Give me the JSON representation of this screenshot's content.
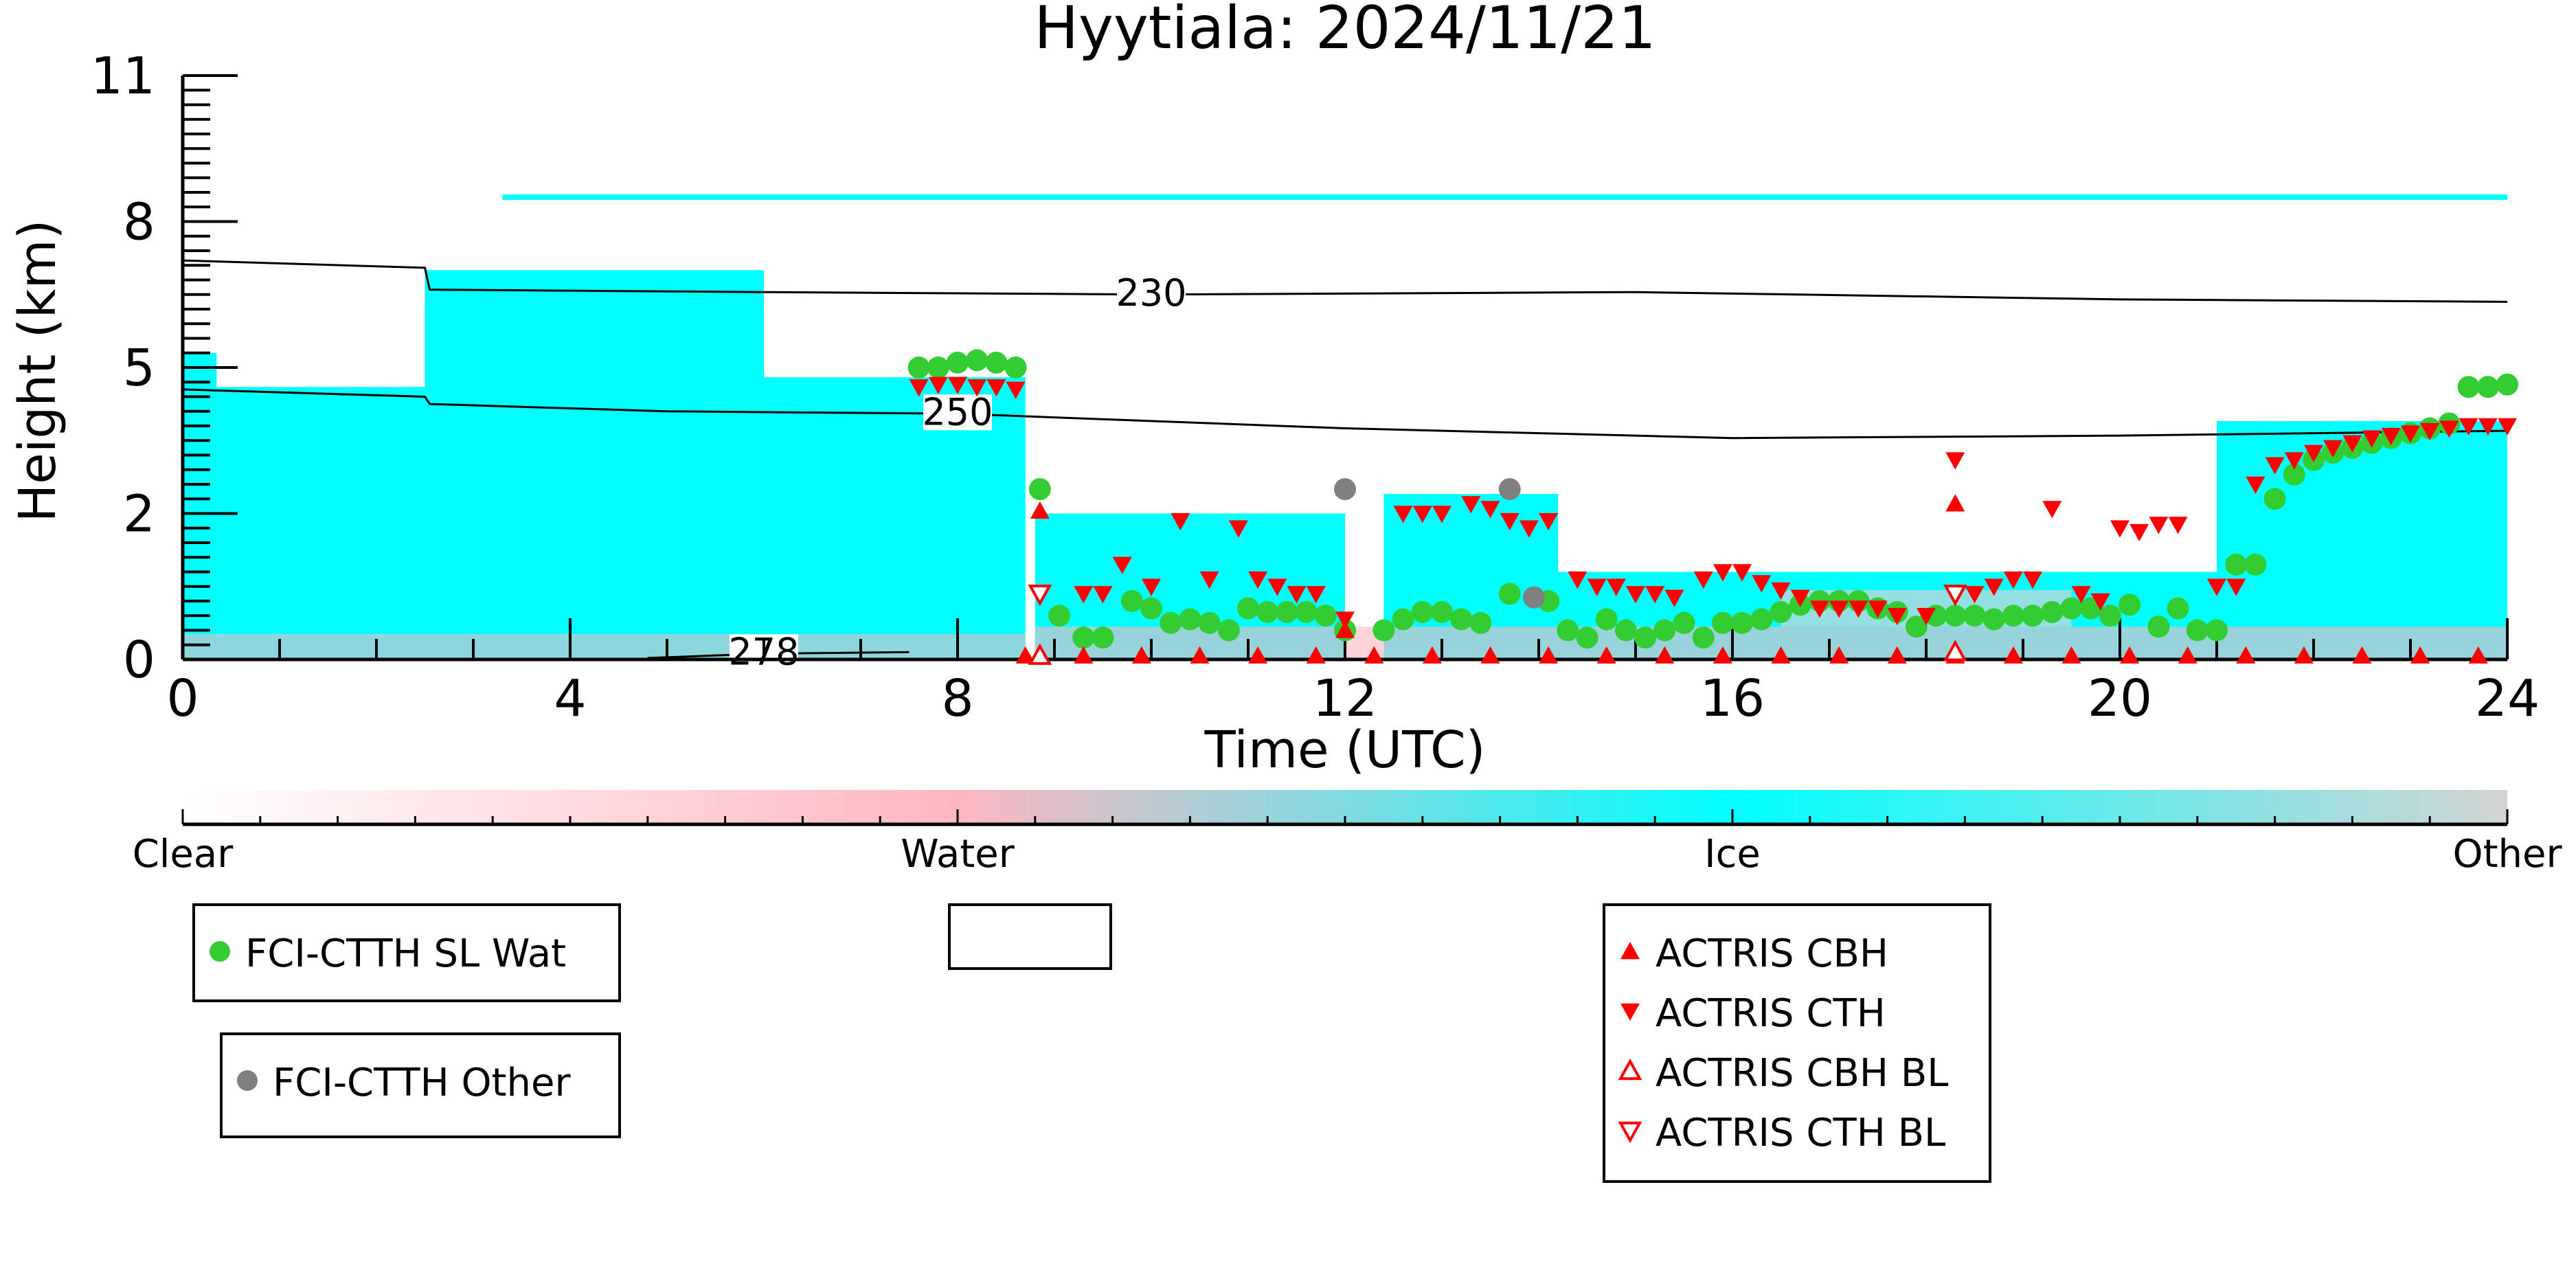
{
  "chart_data": {
    "type": "scatter",
    "title": "Hyytiala: 2024/11/21",
    "xlabel": "Time (UTC)",
    "ylabel": "Height (km)",
    "xlim": [
      0,
      24
    ],
    "ylim": [
      0,
      11
    ],
    "x_ticks": [
      0,
      4,
      8,
      12,
      16,
      20,
      24
    ],
    "y_ticks": [
      0,
      2,
      5,
      8,
      11
    ],
    "y_tick_labels": [
      "0",
      "2",
      "5",
      "8",
      "11"
    ],
    "y_scale": "nonlinear (tick labels 0, 2, 5, 8, 11 equally spaced)",
    "grid": false,
    "contours": [
      {
        "label": "230",
        "points": [
          [
            0,
            7.2
          ],
          [
            2.5,
            7.05
          ],
          [
            2.55,
            6.6
          ],
          [
            6,
            6.55
          ],
          [
            10,
            6.5
          ],
          [
            15,
            6.55
          ],
          [
            20,
            6.4
          ],
          [
            24,
            6.35
          ]
        ]
      },
      {
        "label": "250",
        "points": [
          [
            0,
            4.55
          ],
          [
            2.5,
            4.4
          ],
          [
            2.55,
            4.25
          ],
          [
            5,
            4.1
          ],
          [
            8,
            4.05
          ],
          [
            12,
            3.75
          ],
          [
            16,
            3.55
          ],
          [
            20,
            3.6
          ],
          [
            24,
            3.7
          ]
        ]
      },
      {
        "label": "278",
        "points": [
          [
            4.8,
            0.02
          ],
          [
            6,
            0.08
          ],
          [
            7.5,
            0.1
          ]
        ]
      }
    ],
    "target_classification_regions": [
      {
        "class": "Ice",
        "x": [
          0,
          0.35
        ],
        "top_km": 5.3
      },
      {
        "class": "Ice",
        "x": [
          0.35,
          2.5
        ],
        "top_km": 4.6
      },
      {
        "class": "Ice",
        "x": [
          2.5,
          6
        ],
        "top_km": 7.0
      },
      {
        "class": "Ice",
        "x": [
          6,
          8.7
        ],
        "top_km": 4.8
      },
      {
        "class": "Ice",
        "x": [
          8.8,
          12
        ],
        "top_km": 2.0
      },
      {
        "class": "Ice",
        "x": [
          12.4,
          14.2
        ],
        "top_km": 2.4
      },
      {
        "class": "Ice",
        "x": [
          14.2,
          21
        ],
        "top_km": 1.2
      },
      {
        "class": "Ice",
        "x": [
          21,
          24
        ],
        "top_km": 3.9
      },
      {
        "class": "Ice",
        "x": [
          3.3,
          24
        ],
        "top_km": 8.5,
        "note": "thin layer"
      }
    ],
    "series": [
      {
        "name": "FCI-CTTH SL Wat",
        "marker": "circle",
        "color": "#33cc33",
        "points": [
          [
            7.6,
            5.0
          ],
          [
            7.8,
            5.0
          ],
          [
            8.0,
            5.1
          ],
          [
            8.2,
            5.15
          ],
          [
            8.4,
            5.1
          ],
          [
            8.6,
            5.0
          ],
          [
            8.85,
            2.5
          ],
          [
            9.05,
            0.6
          ],
          [
            9.3,
            0.3
          ],
          [
            9.5,
            0.3
          ],
          [
            9.8,
            0.8
          ],
          [
            10.0,
            0.7
          ],
          [
            10.2,
            0.5
          ],
          [
            10.4,
            0.55
          ],
          [
            10.6,
            0.5
          ],
          [
            10.8,
            0.4
          ],
          [
            11.0,
            0.7
          ],
          [
            11.2,
            0.65
          ],
          [
            11.4,
            0.65
          ],
          [
            11.6,
            0.65
          ],
          [
            11.8,
            0.6
          ],
          [
            12.0,
            0.4
          ],
          [
            12.4,
            0.4
          ],
          [
            12.6,
            0.55
          ],
          [
            12.8,
            0.65
          ],
          [
            13.0,
            0.65
          ],
          [
            13.2,
            0.55
          ],
          [
            13.4,
            0.5
          ],
          [
            13.7,
            0.9
          ],
          [
            14.1,
            0.8
          ],
          [
            14.3,
            0.4
          ],
          [
            14.5,
            0.3
          ],
          [
            14.7,
            0.55
          ],
          [
            14.9,
            0.4
          ],
          [
            15.1,
            0.3
          ],
          [
            15.3,
            0.4
          ],
          [
            15.5,
            0.5
          ],
          [
            15.7,
            0.3
          ],
          [
            15.9,
            0.5
          ],
          [
            16.1,
            0.5
          ],
          [
            16.3,
            0.55
          ],
          [
            16.5,
            0.65
          ],
          [
            16.7,
            0.75
          ],
          [
            16.9,
            0.8
          ],
          [
            17.1,
            0.8
          ],
          [
            17.3,
            0.8
          ],
          [
            17.5,
            0.7
          ],
          [
            17.7,
            0.65
          ],
          [
            17.9,
            0.45
          ],
          [
            18.1,
            0.6
          ],
          [
            18.3,
            0.6
          ],
          [
            18.5,
            0.6
          ],
          [
            18.7,
            0.55
          ],
          [
            18.9,
            0.6
          ],
          [
            19.1,
            0.6
          ],
          [
            19.3,
            0.65
          ],
          [
            19.5,
            0.7
          ],
          [
            19.7,
            0.7
          ],
          [
            19.9,
            0.6
          ],
          [
            20.1,
            0.75
          ],
          [
            20.4,
            0.45
          ],
          [
            20.6,
            0.7
          ],
          [
            20.8,
            0.4
          ],
          [
            21.0,
            0.4
          ],
          [
            21.2,
            1.3
          ],
          [
            21.4,
            1.3
          ],
          [
            21.6,
            2.3
          ],
          [
            21.8,
            2.8
          ],
          [
            22.0,
            3.1
          ],
          [
            22.2,
            3.25
          ],
          [
            22.4,
            3.35
          ],
          [
            22.6,
            3.45
          ],
          [
            22.8,
            3.55
          ],
          [
            23.0,
            3.65
          ],
          [
            23.2,
            3.75
          ],
          [
            23.4,
            3.85
          ],
          [
            23.6,
            4.6
          ],
          [
            23.8,
            4.6
          ],
          [
            24.0,
            4.65
          ]
        ]
      },
      {
        "name": "FCI-CTTH Other",
        "marker": "circle",
        "color": "#808080",
        "points": [
          [
            12.0,
            2.5
          ],
          [
            13.7,
            2.5
          ],
          [
            13.95,
            0.85
          ]
        ]
      },
      {
        "name": "ACTRIS CBH",
        "marker": "triangle-up",
        "color": "#ff0000",
        "points": [
          [
            8.85,
            2.05
          ],
          [
            12.0,
            0.4
          ],
          [
            18.3,
            2.2
          ],
          [
            8.7,
            0.05
          ],
          [
            9.3,
            0.05
          ],
          [
            9.9,
            0.05
          ],
          [
            10.5,
            0.05
          ],
          [
            11.1,
            0.05
          ],
          [
            11.7,
            0.05
          ],
          [
            12.3,
            0.05
          ],
          [
            12.9,
            0.05
          ],
          [
            13.5,
            0.05
          ],
          [
            14.1,
            0.05
          ],
          [
            14.7,
            0.05
          ],
          [
            15.3,
            0.05
          ],
          [
            15.9,
            0.05
          ],
          [
            16.5,
            0.05
          ],
          [
            17.1,
            0.05
          ],
          [
            17.7,
            0.05
          ],
          [
            18.3,
            0.05
          ],
          [
            18.9,
            0.05
          ],
          [
            19.5,
            0.05
          ],
          [
            20.1,
            0.05
          ],
          [
            20.7,
            0.05
          ],
          [
            21.3,
            0.05
          ],
          [
            21.9,
            0.05
          ],
          [
            22.5,
            0.05
          ],
          [
            23.1,
            0.05
          ],
          [
            23.7,
            0.05
          ]
        ]
      },
      {
        "name": "ACTRIS CTH",
        "marker": "triangle-down",
        "color": "#ff0000",
        "points": [
          [
            7.6,
            4.6
          ],
          [
            7.8,
            4.65
          ],
          [
            8.0,
            4.65
          ],
          [
            8.2,
            4.6
          ],
          [
            8.4,
            4.6
          ],
          [
            8.6,
            4.55
          ],
          [
            9.3,
            0.9
          ],
          [
            9.5,
            0.9
          ],
          [
            9.7,
            1.3
          ],
          [
            10.0,
            1.0
          ],
          [
            10.3,
            1.9
          ],
          [
            10.6,
            1.1
          ],
          [
            10.9,
            1.8
          ],
          [
            11.1,
            1.1
          ],
          [
            11.3,
            1.0
          ],
          [
            11.5,
            0.9
          ],
          [
            11.7,
            0.9
          ],
          [
            12.0,
            0.55
          ],
          [
            12.6,
            2.0
          ],
          [
            12.8,
            2.0
          ],
          [
            13.0,
            2.0
          ],
          [
            13.3,
            2.2
          ],
          [
            13.5,
            2.1
          ],
          [
            13.7,
            1.9
          ],
          [
            13.9,
            1.8
          ],
          [
            14.1,
            1.9
          ],
          [
            14.4,
            1.1
          ],
          [
            14.6,
            1.0
          ],
          [
            14.8,
            1.0
          ],
          [
            15.0,
            0.9
          ],
          [
            15.2,
            0.9
          ],
          [
            15.4,
            0.85
          ],
          [
            15.7,
            1.1
          ],
          [
            15.9,
            1.2
          ],
          [
            16.1,
            1.2
          ],
          [
            16.3,
            1.05
          ],
          [
            16.5,
            0.95
          ],
          [
            16.7,
            0.85
          ],
          [
            16.9,
            0.7
          ],
          [
            17.1,
            0.7
          ],
          [
            17.3,
            0.7
          ],
          [
            17.5,
            0.7
          ],
          [
            17.7,
            0.6
          ],
          [
            18.0,
            0.6
          ],
          [
            18.3,
            3.1
          ],
          [
            18.5,
            0.9
          ],
          [
            18.7,
            1.0
          ],
          [
            18.9,
            1.1
          ],
          [
            19.1,
            1.1
          ],
          [
            19.3,
            2.1
          ],
          [
            19.6,
            0.9
          ],
          [
            19.8,
            0.8
          ],
          [
            20.0,
            1.8
          ],
          [
            20.2,
            1.75
          ],
          [
            20.4,
            1.85
          ],
          [
            20.6,
            1.85
          ],
          [
            21.0,
            1.0
          ],
          [
            21.2,
            1.0
          ],
          [
            21.4,
            2.6
          ],
          [
            21.6,
            3.0
          ],
          [
            21.8,
            3.1
          ],
          [
            22.0,
            3.25
          ],
          [
            22.2,
            3.35
          ],
          [
            22.4,
            3.45
          ],
          [
            22.6,
            3.55
          ],
          [
            22.8,
            3.6
          ],
          [
            23.0,
            3.65
          ],
          [
            23.2,
            3.7
          ],
          [
            23.4,
            3.75
          ],
          [
            23.6,
            3.8
          ],
          [
            23.8,
            3.8
          ],
          [
            24.0,
            3.8
          ]
        ]
      },
      {
        "name": "ACTRIS CBH BL",
        "marker": "triangle-up-open",
        "color": "#ff0000",
        "points": [
          [
            8.85,
            0.05
          ],
          [
            18.3,
            0.1
          ]
        ]
      },
      {
        "name": "ACTRIS CTH BL",
        "marker": "triangle-down-open",
        "color": "#ff0000",
        "points": [
          [
            8.85,
            0.9
          ],
          [
            18.3,
            0.9
          ]
        ]
      }
    ],
    "colorbar": {
      "labels": [
        "Clear",
        "Water",
        "Ice",
        "Other"
      ],
      "colors": [
        "#ffffff",
        "#ffb6c1",
        "#00ffff",
        "#d3d3d3"
      ]
    },
    "legends": [
      {
        "position": "lower-left",
        "entries": [
          "FCI-CTTH SL Wat"
        ]
      },
      {
        "position": "lower-left",
        "entries": [
          "FCI-CTTH Other"
        ]
      },
      {
        "position": "lower-center",
        "entries": []
      },
      {
        "position": "lower-right",
        "entries": [
          "ACTRIS CBH",
          "ACTRIS CTH",
          "ACTRIS CBH BL",
          "ACTRIS CTH BL"
        ]
      }
    ]
  }
}
